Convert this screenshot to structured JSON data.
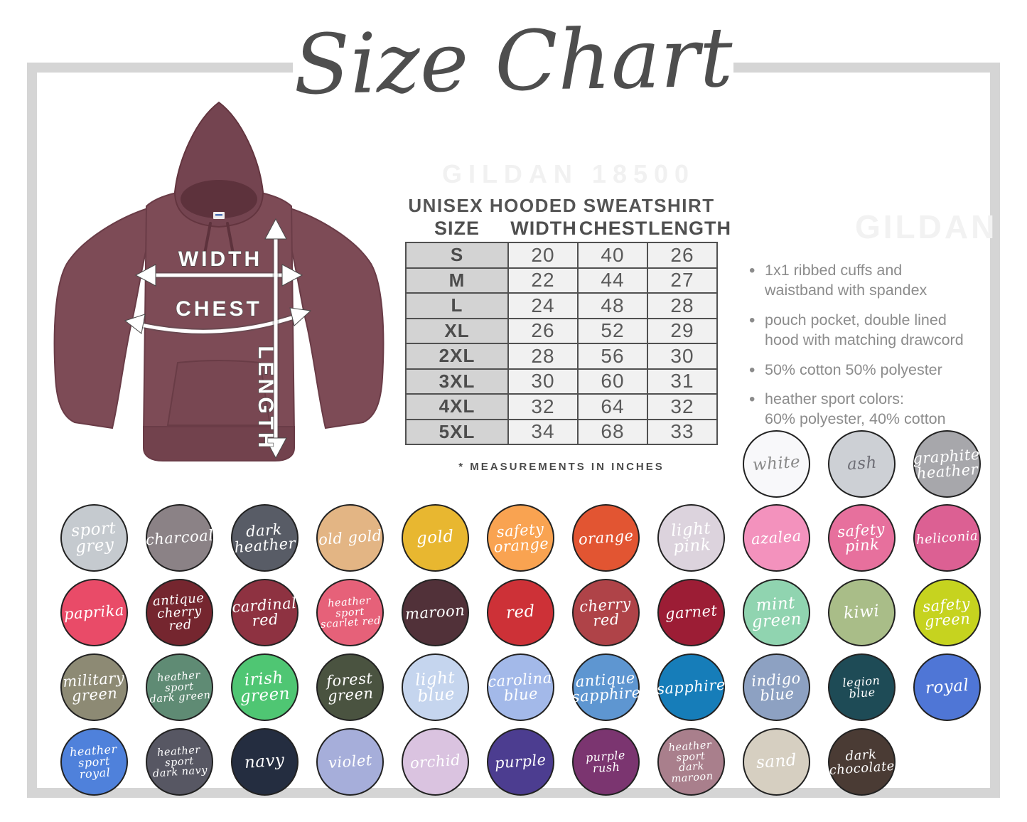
{
  "title": "Size Chart",
  "watermarks": {
    "top": "GILDAN 18500",
    "side": "GILDAN"
  },
  "size_table": {
    "title": "UNISEX HOODED SWEATSHIRT",
    "columns": [
      "SIZE",
      "WIDTH",
      "CHEST",
      "LENGTH"
    ],
    "rows": [
      {
        "size": "S",
        "width": "20",
        "chest": "40",
        "length": "26"
      },
      {
        "size": "M",
        "width": "22",
        "chest": "44",
        "length": "27"
      },
      {
        "size": "L",
        "width": "24",
        "chest": "48",
        "length": "28"
      },
      {
        "size": "XL",
        "width": "26",
        "chest": "52",
        "length": "29"
      },
      {
        "size": "2XL",
        "width": "28",
        "chest": "56",
        "length": "30"
      },
      {
        "size": "3XL",
        "width": "30",
        "chest": "60",
        "length": "31"
      },
      {
        "size": "4XL",
        "width": "32",
        "chest": "64",
        "length": "32"
      },
      {
        "size": "5XL",
        "width": "34",
        "chest": "68",
        "length": "33"
      }
    ],
    "footnote": "* MEASUREMENTS IN INCHES"
  },
  "diagram": {
    "width_label": "WIDTH",
    "chest_label": "CHEST",
    "length_label": "LENGTH",
    "hoodie_color": "#7d4b56",
    "hoodie_shadow": "#6a3c47",
    "hood_inner": "#5d323c"
  },
  "features": [
    "1x1 ribbed cuffs and\nwaistband with spandex",
    "pouch pocket, double lined\nhood with matching drawcord",
    "50% cotton 50% polyester",
    "heather sport colors:\n60% polyester, 40% cotton"
  ],
  "swatches": {
    "top_row": [
      {
        "name": "white",
        "label": "white",
        "bg": "#f8f8fa",
        "text": "#8a8a8a"
      },
      {
        "name": "ash",
        "label": "ash",
        "bg": "#cdd0d5",
        "text": "#6e6e76"
      },
      {
        "name": "graphite heather",
        "label": "graphite\nheather",
        "bg": "#a7a7ab",
        "text": "#ffffff"
      }
    ],
    "rows": [
      [
        {
          "name": "sport grey",
          "label": "sport\ngrey",
          "bg": "#c5cacf",
          "text": "#ffffff"
        },
        {
          "name": "charcoal",
          "label": "charcoal",
          "bg": "#8b8286",
          "text": "#ffffff"
        },
        {
          "name": "dark heather",
          "label": "dark\nheather",
          "bg": "#585c66",
          "text": "#ffffff"
        },
        {
          "name": "old gold",
          "label": "old gold",
          "bg": "#e3b584",
          "text": "#ffffff"
        },
        {
          "name": "gold",
          "label": "gold",
          "bg": "#e8b730",
          "text": "#ffffff"
        },
        {
          "name": "safety orange",
          "label": "safety\norange",
          "bg": "#f9a351",
          "text": "#ffffff"
        },
        {
          "name": "orange",
          "label": "orange",
          "bg": "#e25532",
          "text": "#ffffff"
        },
        {
          "name": "light pink",
          "label": "light\npink",
          "bg": "#dcd3dd",
          "text": "#ffffff"
        },
        {
          "name": "azalea",
          "label": "azalea",
          "bg": "#f392bd",
          "text": "#ffffff"
        },
        {
          "name": "safety pink",
          "label": "safety\npink",
          "bg": "#e7709d",
          "text": "#ffffff"
        },
        {
          "name": "heliconia",
          "label": "heliconia",
          "bg": "#dc6093",
          "text": "#ffffff"
        }
      ],
      [
        {
          "name": "paprika",
          "label": "paprika",
          "bg": "#e94b68",
          "text": "#ffffff"
        },
        {
          "name": "antique cherry red",
          "label": "antique\ncherry red",
          "bg": "#75262f",
          "text": "#ffffff"
        },
        {
          "name": "cardinal red",
          "label": "cardinal\nred",
          "bg": "#8e3241",
          "text": "#ffffff"
        },
        {
          "name": "heather sport scarlet red",
          "label": "heather sport\nscarlet red",
          "bg": "#e66179",
          "text": "#ffffff"
        },
        {
          "name": "maroon",
          "label": "maroon",
          "bg": "#513139",
          "text": "#ffffff"
        },
        {
          "name": "red",
          "label": "red",
          "bg": "#cd3137",
          "text": "#ffffff"
        },
        {
          "name": "cherry red",
          "label": "cherry\nred",
          "bg": "#af4348",
          "text": "#ffffff"
        },
        {
          "name": "garnet",
          "label": "garnet",
          "bg": "#9c1d35",
          "text": "#ffffff"
        },
        {
          "name": "mint green",
          "label": "mint\ngreen",
          "bg": "#90d4b0",
          "text": "#ffffff"
        },
        {
          "name": "kiwi",
          "label": "kiwi",
          "bg": "#a9bd88",
          "text": "#ffffff"
        },
        {
          "name": "safety green",
          "label": "safety\ngreen",
          "bg": "#c6d31f",
          "text": "#ffffff"
        }
      ],
      [
        {
          "name": "military green",
          "label": "military\ngreen",
          "bg": "#8d8a74",
          "text": "#ffffff"
        },
        {
          "name": "heather sport dark green",
          "label": "heather sport\ndark green",
          "bg": "#5f8b74",
          "text": "#ffffff"
        },
        {
          "name": "irish green",
          "label": "irish\ngreen",
          "bg": "#4fc673",
          "text": "#ffffff"
        },
        {
          "name": "forest green",
          "label": "forest\ngreen",
          "bg": "#4a5340",
          "text": "#ffffff"
        },
        {
          "name": "light blue",
          "label": "light\nblue",
          "bg": "#c5d5ee",
          "text": "#ffffff"
        },
        {
          "name": "carolina blue",
          "label": "carolina\nblue",
          "bg": "#a3b9e9",
          "text": "#ffffff"
        },
        {
          "name": "antique sapphire",
          "label": "antique\nsapphire",
          "bg": "#5e96d1",
          "text": "#ffffff"
        },
        {
          "name": "sapphire",
          "label": "sapphire",
          "bg": "#167db9",
          "text": "#ffffff"
        },
        {
          "name": "indigo blue",
          "label": "indigo\nblue",
          "bg": "#8da1c2",
          "text": "#ffffff"
        },
        {
          "name": "legion blue",
          "label": "legion blue",
          "bg": "#1e4b56",
          "text": "#ffffff"
        },
        {
          "name": "royal",
          "label": "royal",
          "bg": "#4f76d6",
          "text": "#ffffff"
        }
      ],
      [
        {
          "name": "heather sport royal",
          "label": "heather\nsport royal",
          "bg": "#4f81db",
          "text": "#ffffff"
        },
        {
          "name": "heather sport dark navy",
          "label": "heather sport\ndark navy",
          "bg": "#575763",
          "text": "#ffffff"
        },
        {
          "name": "navy",
          "label": "navy",
          "bg": "#242d40",
          "text": "#ffffff"
        },
        {
          "name": "violet",
          "label": "violet",
          "bg": "#a6aeda",
          "text": "#ffffff"
        },
        {
          "name": "orchid",
          "label": "orchid",
          "bg": "#dac3e0",
          "text": "#ffffff"
        },
        {
          "name": "purple",
          "label": "purple",
          "bg": "#4c3d90",
          "text": "#ffffff"
        },
        {
          "name": "purple rush",
          "label": "purple rush",
          "bg": "#7b3570",
          "text": "#ffffff"
        },
        {
          "name": "heather sport dark maroon",
          "label": "heather sport\ndark maroon",
          "bg": "#a97f8c",
          "text": "#ffffff"
        },
        {
          "name": "sand",
          "label": "sand",
          "bg": "#d6cfc1",
          "text": "#ffffff"
        },
        {
          "name": "dark chocolate",
          "label": "dark\nchocolate",
          "bg": "#4a3b34",
          "text": "#ffffff"
        }
      ]
    ]
  }
}
